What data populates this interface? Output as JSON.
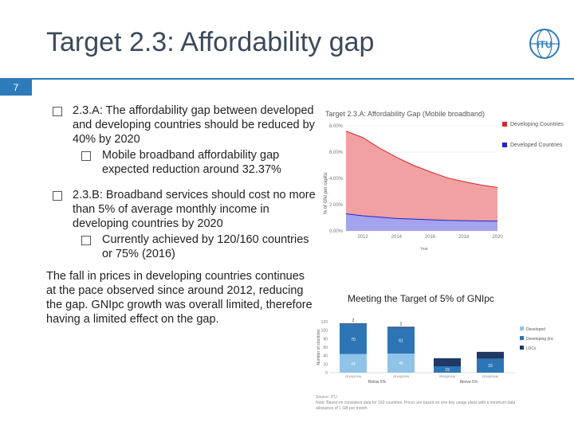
{
  "slide": {
    "title": "Target 2.3: Affordability gap",
    "number": "7",
    "logo_text": "ITU"
  },
  "bullets": [
    {
      "text": "2.3.A: The affordability gap between developed and developing countries should be reduced by 40% by 2020",
      "sub": "Mobile broadband affordability gap expected reduction around 32.37%"
    },
    {
      "text": "2.3.B: Broadband services should cost no more than 5% of average monthly income in developing countries by 2020",
      "sub": "Currently achieved by 120/160 countries or 75% (2016)"
    }
  ],
  "paragraph": "The fall in prices in developing countries continues at the pace observed since around 2012, reducing the gap. GNIpc growth was overall limited, therefore having a limited effect on the gap.",
  "colors": {
    "accent": "#2e7bb9",
    "developing": "#d9262c",
    "developed": "#2222cc",
    "ldcs": "#1f3864",
    "developed_bar": "#8fc3e8",
    "developing_bar": "#2e75b6"
  },
  "chart_data": [
    {
      "type": "area",
      "title": "Target 2.3.A: Affordability Gap (Mobile broadband)",
      "xlabel": "Year",
      "ylabel": "% of GNI per capita",
      "x": [
        2011,
        2012,
        2013,
        2014,
        2015,
        2016,
        2017,
        2018,
        2019,
        2020
      ],
      "xticks": [
        "2012",
        "2014",
        "2016",
        "2018",
        "2020"
      ],
      "yticks": [
        "0.00%",
        "2.00%",
        "4.00%",
        "6.00%",
        "8.00%"
      ],
      "ylim": [
        0,
        8
      ],
      "series": [
        {
          "name": "Developing Countries",
          "values": [
            7.6,
            7.1,
            6.3,
            5.6,
            5.0,
            4.5,
            4.05,
            3.75,
            3.5,
            3.3
          ]
        },
        {
          "name": "Developed Countries",
          "values": [
            1.3,
            1.15,
            1.05,
            0.95,
            0.9,
            0.85,
            0.8,
            0.78,
            0.76,
            0.75
          ]
        }
      ],
      "legend": [
        "Developing Countries",
        "Developed Countries"
      ]
    },
    {
      "type": "bar",
      "title": "Meeting the Target of 5% of GNIpc",
      "ylabel": "Number of countries",
      "ylim": [
        0,
        120
      ],
      "yticks": [
        "0",
        "20",
        "40",
        "60",
        "80",
        "100",
        "120"
      ],
      "groups": [
        "Below 5%",
        "Above 5%"
      ],
      "categories": [
        "2015(2016)",
        "2016(2016)",
        "2015(2016)",
        "2016(2016)"
      ],
      "series": [
        {
          "name": "Developed",
          "values": [
            44,
            45,
            0,
            0
          ]
        },
        {
          "name": "Developing (incl. LDCs)",
          "values": [
            70,
            61,
            15,
            33
          ]
        },
        {
          "name": "LDCs",
          "values": [
            2,
            2,
            19,
            16
          ]
        }
      ],
      "value_labels": [
        [
          "44",
          "45",
          "15",
          "33"
        ],
        [
          "70",
          "61",
          "19",
          "16"
        ],
        [
          "2",
          "2",
          "",
          ""
        ]
      ],
      "legend": [
        "Developed",
        "Developing (incl. LDCs)",
        "LDCs"
      ]
    }
  ],
  "source": {
    "line1": "Source: ITU",
    "line2": "Note: Based on consistent data for 160 countries. Prices are based on one-key usage plans with a minimum data",
    "line3": "allowance of 1 GB per month."
  }
}
